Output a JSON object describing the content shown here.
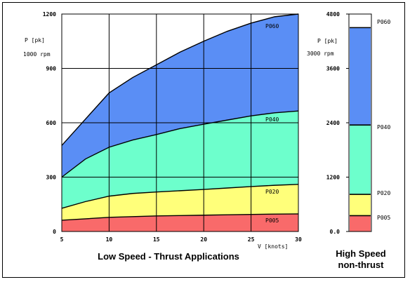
{
  "chart_data": [
    {
      "type": "area",
      "caption": "Low Speed - Thrust Applications",
      "xlabel": "V [knots]",
      "ylabel": "P [pk]",
      "ylabel_sub": "1000 rpm",
      "xlim": [
        5,
        30
      ],
      "ylim": [
        0,
        1200
      ],
      "xticks": [
        "5",
        "10",
        "15",
        "20",
        "25",
        "30"
      ],
      "yticks": [
        "0",
        "300",
        "600",
        "900",
        "1200"
      ],
      "grid": true,
      "x": [
        5,
        7.5,
        10,
        12.5,
        15,
        17.5,
        20,
        22.5,
        25,
        27.5,
        30
      ],
      "series": [
        {
          "name": "P005",
          "color": "#f96a6a",
          "values": [
            62,
            70,
            78,
            82,
            86,
            88,
            90,
            92,
            94,
            96,
            97
          ]
        },
        {
          "name": "P020",
          "color": "#ffff7a",
          "values": [
            128,
            165,
            195,
            210,
            218,
            225,
            232,
            240,
            248,
            255,
            260
          ]
        },
        {
          "name": "P040",
          "color": "#6dffcc",
          "values": [
            300,
            400,
            465,
            505,
            535,
            568,
            592,
            615,
            638,
            655,
            665
          ]
        },
        {
          "name": "P060",
          "color": "#5a8ef5",
          "values": [
            475,
            620,
            765,
            850,
            920,
            990,
            1050,
            1105,
            1150,
            1185,
            1200
          ]
        }
      ]
    },
    {
      "type": "bar",
      "caption_lines": [
        "High Speed",
        "non-thrust"
      ],
      "ylabel": "P [pk]",
      "ylabel_sub": "3000 rpm",
      "ylim": [
        0,
        4800
      ],
      "yticks": [
        "0.0",
        "1200",
        "2400",
        "3600",
        "4800"
      ],
      "segments": [
        {
          "name": "P005",
          "color": "#f96a6a",
          "value": 350
        },
        {
          "name": "P020",
          "color": "#ffff7a",
          "value": 820
        },
        {
          "name": "P040",
          "color": "#6dffcc",
          "value": 2350
        },
        {
          "name": "P060",
          "color": "#5a8ef5",
          "value": 4500
        }
      ]
    }
  ]
}
